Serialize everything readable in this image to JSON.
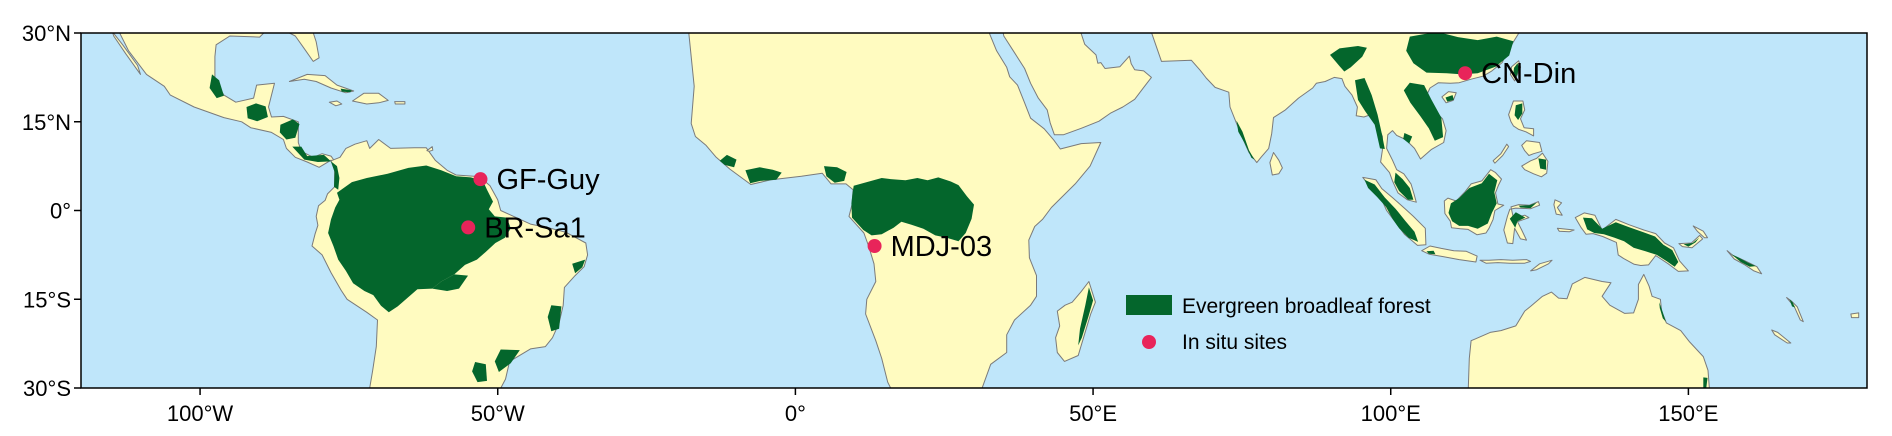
{
  "map": {
    "extent": {
      "lon_min": -120,
      "lon_max": 180,
      "lat_min": -30,
      "lat_max": 30
    },
    "colors": {
      "ocean": "#bfe6fa",
      "land": "#fffbc0",
      "coast": "#7a7a7a",
      "forest": "#04662c",
      "site": "#e8245a",
      "frame": "#000000"
    },
    "lat_ticks": [
      {
        "value": 30,
        "label": "30°N"
      },
      {
        "value": 15,
        "label": "15°N"
      },
      {
        "value": 0,
        "label": "0°"
      },
      {
        "value": -15,
        "label": "15°S"
      },
      {
        "value": -30,
        "label": "30°S"
      }
    ],
    "lon_ticks": [
      {
        "value": -100,
        "label": "100°W"
      },
      {
        "value": -50,
        "label": "50°W"
      },
      {
        "value": 0,
        "label": "0°"
      },
      {
        "value": 50,
        "label": "50°E"
      },
      {
        "value": 100,
        "label": "100°E"
      },
      {
        "value": 150,
        "label": "150°E"
      }
    ],
    "sites": [
      {
        "name": "GF-Guy",
        "lon": -52.9,
        "lat": 5.3
      },
      {
        "name": "BR-Sa1",
        "lon": -54.96,
        "lat": -2.86
      },
      {
        "name": "MDJ-03",
        "lon": 13.3,
        "lat": -6.0
      },
      {
        "name": "CN-Din",
        "lon": 112.5,
        "lat": 23.2
      }
    ],
    "legend": {
      "forest_label": "Evergreen broadleaf forest",
      "sites_label": "In situ sites"
    }
  }
}
